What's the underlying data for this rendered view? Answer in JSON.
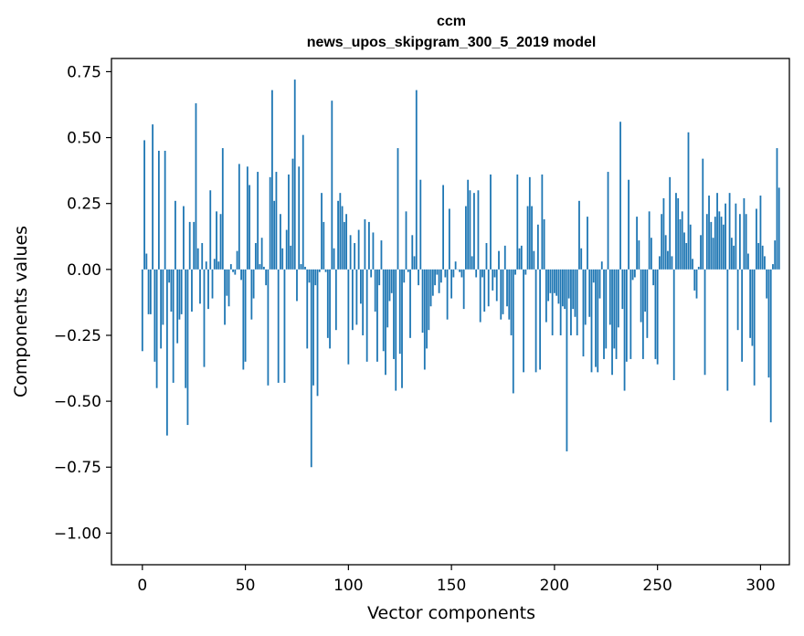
{
  "chart_data": {
    "type": "bar",
    "title_line1": "ccm",
    "title_line2": "news_upos_skipgram_300_5_2019 model",
    "xlabel": "Vector components",
    "ylabel": "Components values",
    "xlim": [
      -15,
      314
    ],
    "ylim": [
      -1.12,
      0.8
    ],
    "xticks": [
      0,
      50,
      100,
      150,
      200,
      250,
      300
    ],
    "xtick_labels": [
      "0",
      "50",
      "100",
      "150",
      "200",
      "250",
      "300"
    ],
    "yticks": [
      0.75,
      0.5,
      0.25,
      0.0,
      -0.25,
      -0.5,
      -0.75,
      -1.0
    ],
    "ytick_labels": [
      "0.75",
      "0.50",
      "0.25",
      "0.00",
      "−0.25",
      "−0.50",
      "−0.75",
      "−1.00"
    ],
    "grid": false,
    "bar_color": "#1f77b4",
    "x_start": 0,
    "values": [
      -0.31,
      0.49,
      0.06,
      -0.17,
      -0.17,
      0.55,
      -0.35,
      -0.45,
      0.45,
      -0.3,
      -0.21,
      0.45,
      -0.63,
      -0.05,
      -0.16,
      -0.43,
      0.26,
      -0.28,
      -0.19,
      -0.17,
      0.24,
      -0.45,
      -0.59,
      0.18,
      -0.16,
      0.18,
      0.63,
      0.08,
      -0.13,
      0.1,
      -0.37,
      0.03,
      -0.15,
      0.3,
      -0.11,
      0.04,
      0.22,
      0.03,
      0.21,
      0.46,
      -0.21,
      -0.1,
      -0.14,
      0.02,
      -0.01,
      -0.02,
      0.07,
      0.4,
      -0.04,
      -0.38,
      -0.35,
      0.39,
      0.32,
      -0.19,
      -0.11,
      0.1,
      0.37,
      0.02,
      0.12,
      0.01,
      -0.06,
      -0.44,
      0.35,
      0.68,
      0.26,
      0.37,
      -0.43,
      0.21,
      0.08,
      -0.43,
      0.15,
      0.36,
      0.09,
      0.42,
      0.72,
      -0.12,
      0.39,
      0.02,
      0.51,
      0.01,
      -0.3,
      -0.05,
      -0.75,
      -0.44,
      -0.06,
      -0.48,
      -0.01,
      0.29,
      0.18,
      -0.01,
      -0.26,
      -0.3,
      0.64,
      0.08,
      -0.23,
      0.26,
      0.29,
      0.24,
      0.18,
      0.21,
      -0.36,
      0.13,
      -0.23,
      0.1,
      -0.21,
      0.15,
      -0.13,
      -0.25,
      0.19,
      -0.35,
      0.18,
      -0.03,
      0.14,
      -0.16,
      -0.35,
      -0.06,
      0.11,
      -0.31,
      -0.4,
      -0.22,
      -0.12,
      -0.09,
      -0.34,
      -0.46,
      0.46,
      -0.32,
      -0.45,
      -0.05,
      0.22,
      -0.01,
      -0.26,
      0.13,
      0.05,
      0.68,
      -0.06,
      0.34,
      -0.24,
      -0.38,
      -0.3,
      -0.23,
      -0.14,
      -0.1,
      -0.06,
      -0.02,
      -0.09,
      -0.05,
      0.32,
      -0.03,
      -0.19,
      0.23,
      -0.11,
      -0.03,
      0.03,
      0.0,
      -0.01,
      -0.03,
      -0.15,
      0.24,
      0.34,
      0.3,
      0.05,
      0.29,
      -0.03,
      0.3,
      -0.2,
      -0.03,
      -0.16,
      0.1,
      -0.14,
      0.36,
      -0.08,
      -0.03,
      -0.12,
      0.07,
      -0.19,
      -0.17,
      0.09,
      -0.14,
      -0.19,
      -0.25,
      -0.47,
      -0.02,
      0.36,
      0.08,
      0.09,
      -0.39,
      -0.02,
      0.24,
      0.35,
      0.24,
      0.07,
      -0.39,
      0.17,
      -0.38,
      0.36,
      0.19,
      -0.2,
      -0.12,
      -0.09,
      -0.25,
      -0.09,
      -0.1,
      -0.13,
      -0.25,
      -0.14,
      -0.15,
      -0.69,
      -0.11,
      -0.25,
      -0.15,
      -0.18,
      -0.25,
      0.26,
      0.08,
      -0.33,
      -0.21,
      0.2,
      -0.18,
      -0.39,
      -0.05,
      -0.37,
      -0.39,
      -0.11,
      0.03,
      -0.34,
      -0.3,
      0.37,
      -0.21,
      -0.4,
      -0.3,
      -0.34,
      -0.22,
      0.56,
      -0.15,
      -0.46,
      -0.35,
      0.34,
      -0.34,
      -0.04,
      -0.03,
      0.2,
      0.11,
      -0.2,
      -0.34,
      -0.16,
      -0.26,
      0.22,
      0.12,
      -0.06,
      -0.34,
      -0.36,
      0.05,
      0.21,
      0.27,
      0.13,
      0.07,
      0.35,
      0.05,
      -0.42,
      0.29,
      0.27,
      0.19,
      0.22,
      0.14,
      0.1,
      0.52,
      0.17,
      0.04,
      -0.08,
      -0.11,
      0.01,
      0.13,
      0.42,
      -0.4,
      0.21,
      0.28,
      0.18,
      0.12,
      0.2,
      0.29,
      0.22,
      0.2,
      0.17,
      0.25,
      -0.46,
      0.29,
      0.12,
      0.09,
      0.25,
      -0.23,
      0.21,
      -0.35,
      0.27,
      0.21,
      0.06,
      -0.26,
      -0.29,
      -0.44,
      0.23,
      0.1,
      0.28,
      0.09,
      0.05,
      -0.11,
      -0.41,
      -0.58,
      0.02,
      0.11,
      0.46,
      0.31
    ]
  }
}
